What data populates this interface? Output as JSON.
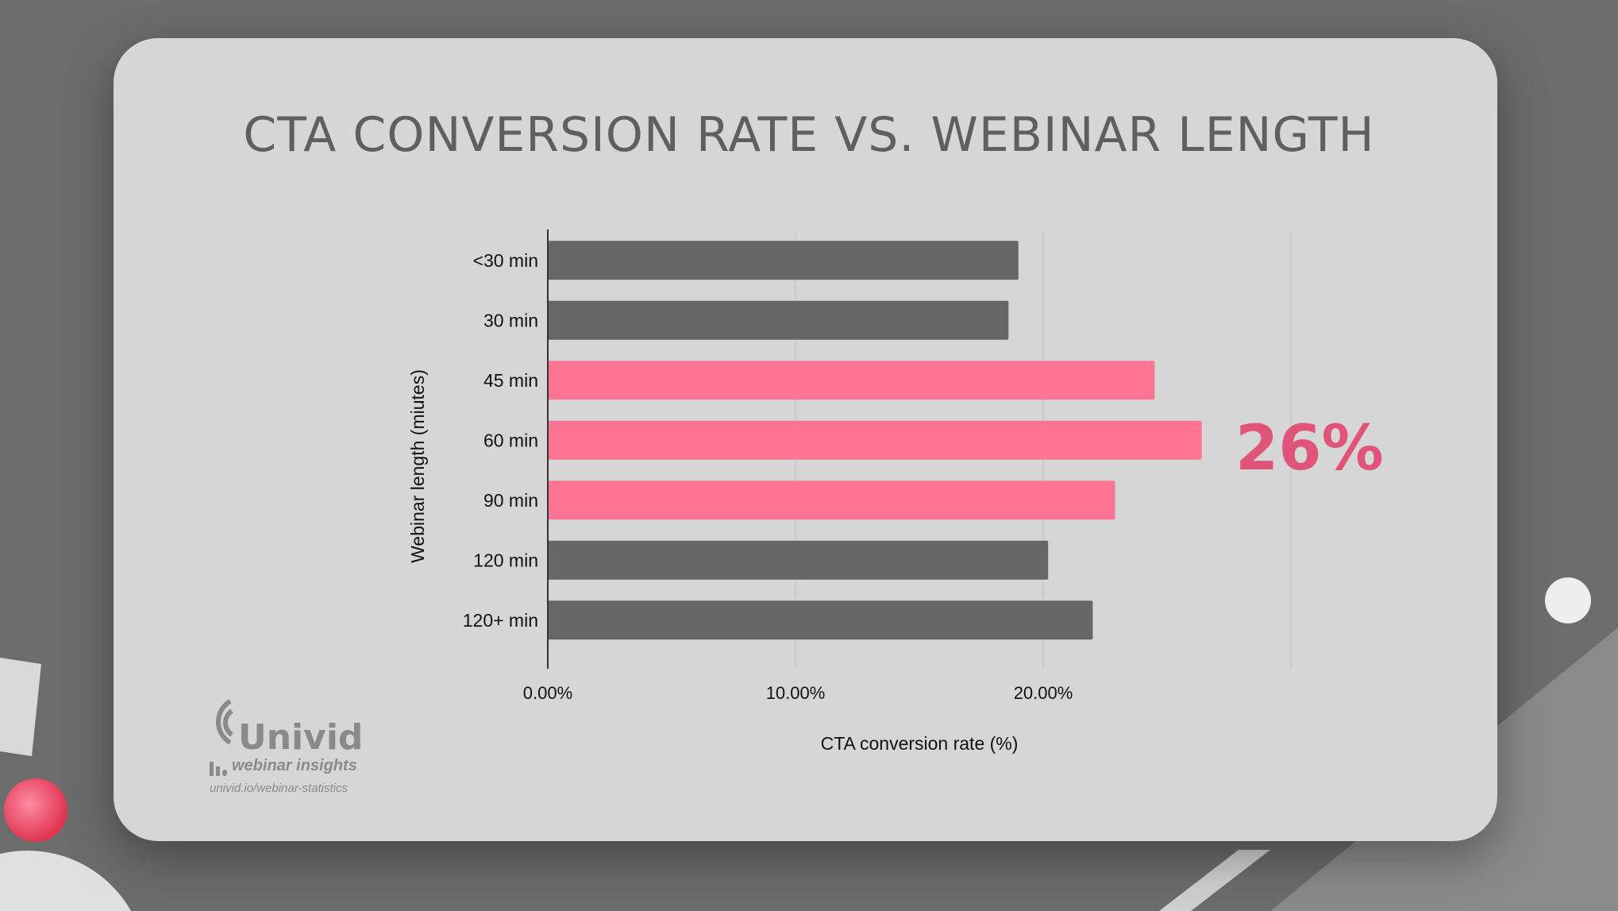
{
  "title": "CTA CONVERSION RATE VS. WEBINAR LENGTH",
  "highlight_label": "26%",
  "logo": {
    "brand": "Univid",
    "subtitle": "webinar insights",
    "url": "univid.io/webinar-statistics"
  },
  "chart_data": {
    "type": "bar",
    "orientation": "horizontal",
    "title": "CTA CONVERSION RATE VS. WEBINAR LENGTH",
    "xlabel": "CTA conversion rate (%)",
    "ylabel": "Webinar length (miutes)",
    "categories": [
      "<30 min",
      "30 min",
      "45 min",
      "60 min",
      "90 min",
      "120 min",
      "120+ min"
    ],
    "values": [
      19.0,
      18.6,
      24.5,
      26.4,
      22.9,
      20.2,
      22.0
    ],
    "highlighted": [
      false,
      false,
      true,
      true,
      true,
      false,
      false
    ],
    "xlim": [
      0,
      30
    ],
    "xticks": [
      0,
      10,
      20,
      30
    ],
    "xtick_labels": [
      "0.00%",
      "10.00%",
      "20.00%",
      ""
    ],
    "grid": true,
    "colors": {
      "default": "#666666",
      "highlight": "#ff7393",
      "annotation": "#e05479"
    }
  }
}
